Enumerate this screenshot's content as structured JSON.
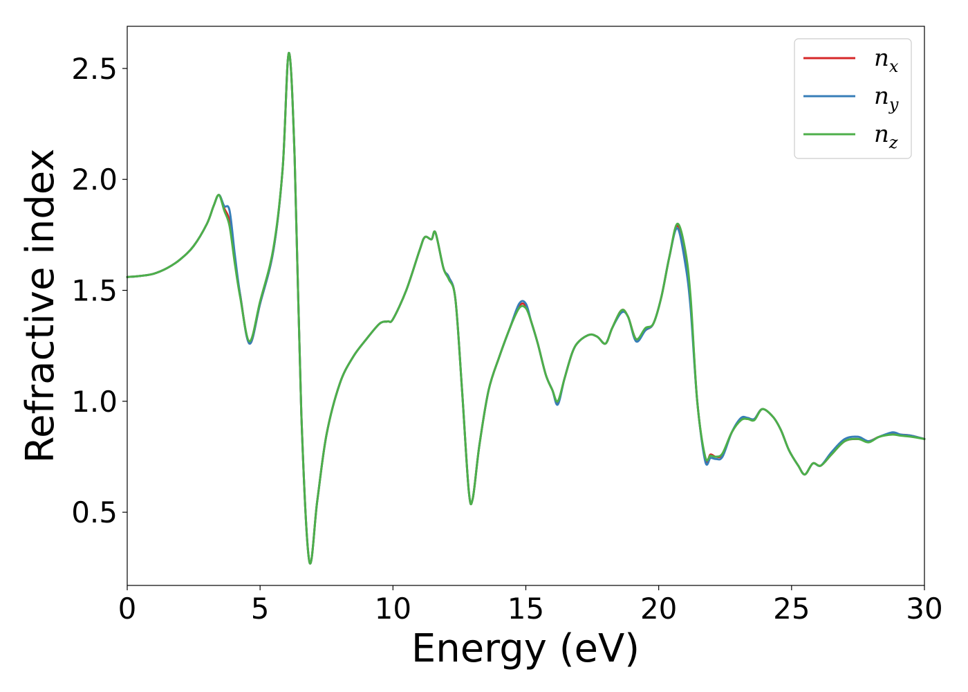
{
  "chart_data": {
    "type": "line",
    "title": "",
    "xlabel": "Energy (eV)",
    "ylabel": "Refractive index",
    "xlim": [
      0,
      30
    ],
    "ylim": [
      0.17,
      2.69
    ],
    "xticks": [
      "0",
      "5",
      "10",
      "15",
      "20",
      "25",
      "30"
    ],
    "yticks": [
      "0.5",
      "1.0",
      "1.5",
      "2.0",
      "2.5"
    ],
    "grid": false,
    "legend_position": "top-right",
    "x": [
      0,
      0.5,
      1,
      1.5,
      2,
      2.5,
      3,
      3.25,
      3.45,
      3.65,
      3.85,
      4.05,
      4.25,
      4.6,
      5,
      5.5,
      5.85,
      6.08,
      6.3,
      6.55,
      6.85,
      7.15,
      7.5,
      8,
      8.5,
      9,
      9.5,
      9.8,
      10,
      10.5,
      11,
      11.2,
      11.45,
      11.6,
      11.9,
      12.1,
      12.35,
      12.6,
      12.85,
      13,
      13.25,
      13.6,
      14,
      14.4,
      14.75,
      15,
      15.2,
      15.45,
      15.75,
      16,
      16.2,
      16.45,
      16.75,
      17,
      17.4,
      17.7,
      18,
      18.25,
      18.6,
      18.85,
      19.15,
      19.5,
      19.8,
      20.1,
      20.4,
      20.7,
      21,
      21.2,
      21.45,
      21.75,
      21.95,
      22.15,
      22.4,
      22.75,
      23.1,
      23.35,
      23.6,
      23.9,
      24.3,
      24.6,
      24.9,
      25.25,
      25.5,
      25.8,
      26.1,
      26.5,
      27,
      27.5,
      27.9,
      28.3,
      28.8,
      29.1,
      29.5,
      30
    ],
    "series": [
      {
        "name": "n",
        "subscript": "x",
        "color": "#d62728",
        "values": [
          1.56,
          1.565,
          1.575,
          1.6,
          1.64,
          1.7,
          1.8,
          1.88,
          1.93,
          1.87,
          1.81,
          1.63,
          1.48,
          1.26,
          1.44,
          1.68,
          2.05,
          2.57,
          2.1,
          0.95,
          0.28,
          0.55,
          0.85,
          1.08,
          1.2,
          1.28,
          1.35,
          1.36,
          1.37,
          1.5,
          1.68,
          1.74,
          1.73,
          1.76,
          1.6,
          1.56,
          1.46,
          1.05,
          0.6,
          0.56,
          0.8,
          1.05,
          1.2,
          1.33,
          1.43,
          1.43,
          1.36,
          1.26,
          1.12,
          1.05,
          0.99,
          1.1,
          1.22,
          1.27,
          1.3,
          1.29,
          1.26,
          1.33,
          1.41,
          1.38,
          1.28,
          1.32,
          1.35,
          1.47,
          1.65,
          1.79,
          1.66,
          1.45,
          1.0,
          0.74,
          0.76,
          0.75,
          0.76,
          0.86,
          0.92,
          0.92,
          0.92,
          0.965,
          0.93,
          0.87,
          0.78,
          0.71,
          0.67,
          0.72,
          0.71,
          0.76,
          0.82,
          0.83,
          0.82,
          0.84,
          0.855,
          0.85,
          0.845,
          0.83
        ]
      },
      {
        "name": "n",
        "subscript": "y",
        "color": "#377eb8",
        "values": [
          1.56,
          1.565,
          1.575,
          1.6,
          1.64,
          1.7,
          1.8,
          1.88,
          1.93,
          1.88,
          1.86,
          1.66,
          1.48,
          1.26,
          1.44,
          1.68,
          2.05,
          2.57,
          2.1,
          0.95,
          0.28,
          0.55,
          0.85,
          1.08,
          1.2,
          1.28,
          1.35,
          1.36,
          1.37,
          1.5,
          1.68,
          1.74,
          1.73,
          1.76,
          1.6,
          1.56,
          1.46,
          1.05,
          0.6,
          0.56,
          0.8,
          1.05,
          1.2,
          1.33,
          1.44,
          1.44,
          1.36,
          1.26,
          1.12,
          1.05,
          0.985,
          1.1,
          1.22,
          1.27,
          1.3,
          1.29,
          1.26,
          1.33,
          1.4,
          1.38,
          1.27,
          1.32,
          1.35,
          1.47,
          1.65,
          1.78,
          1.62,
          1.42,
          1.0,
          0.73,
          0.745,
          0.74,
          0.75,
          0.86,
          0.925,
          0.925,
          0.92,
          0.965,
          0.93,
          0.87,
          0.78,
          0.71,
          0.67,
          0.72,
          0.71,
          0.77,
          0.83,
          0.84,
          0.82,
          0.84,
          0.86,
          0.85,
          0.845,
          0.83
        ]
      },
      {
        "name": "n",
        "subscript": "z",
        "color": "#4daf4a",
        "values": [
          1.56,
          1.565,
          1.575,
          1.6,
          1.64,
          1.7,
          1.8,
          1.88,
          1.93,
          1.86,
          1.79,
          1.62,
          1.47,
          1.27,
          1.45,
          1.69,
          2.05,
          2.57,
          2.1,
          0.95,
          0.28,
          0.55,
          0.85,
          1.08,
          1.2,
          1.28,
          1.35,
          1.36,
          1.37,
          1.5,
          1.68,
          1.74,
          1.73,
          1.76,
          1.6,
          1.55,
          1.46,
          1.05,
          0.6,
          0.56,
          0.8,
          1.05,
          1.2,
          1.33,
          1.42,
          1.42,
          1.36,
          1.26,
          1.12,
          1.05,
          1.0,
          1.1,
          1.22,
          1.27,
          1.3,
          1.29,
          1.26,
          1.33,
          1.41,
          1.38,
          1.28,
          1.33,
          1.35,
          1.47,
          1.65,
          1.8,
          1.68,
          1.47,
          1.0,
          0.75,
          0.755,
          0.75,
          0.765,
          0.86,
          0.915,
          0.92,
          0.915,
          0.965,
          0.93,
          0.87,
          0.78,
          0.71,
          0.67,
          0.72,
          0.71,
          0.76,
          0.82,
          0.83,
          0.815,
          0.84,
          0.85,
          0.845,
          0.84,
          0.83
        ]
      }
    ]
  }
}
